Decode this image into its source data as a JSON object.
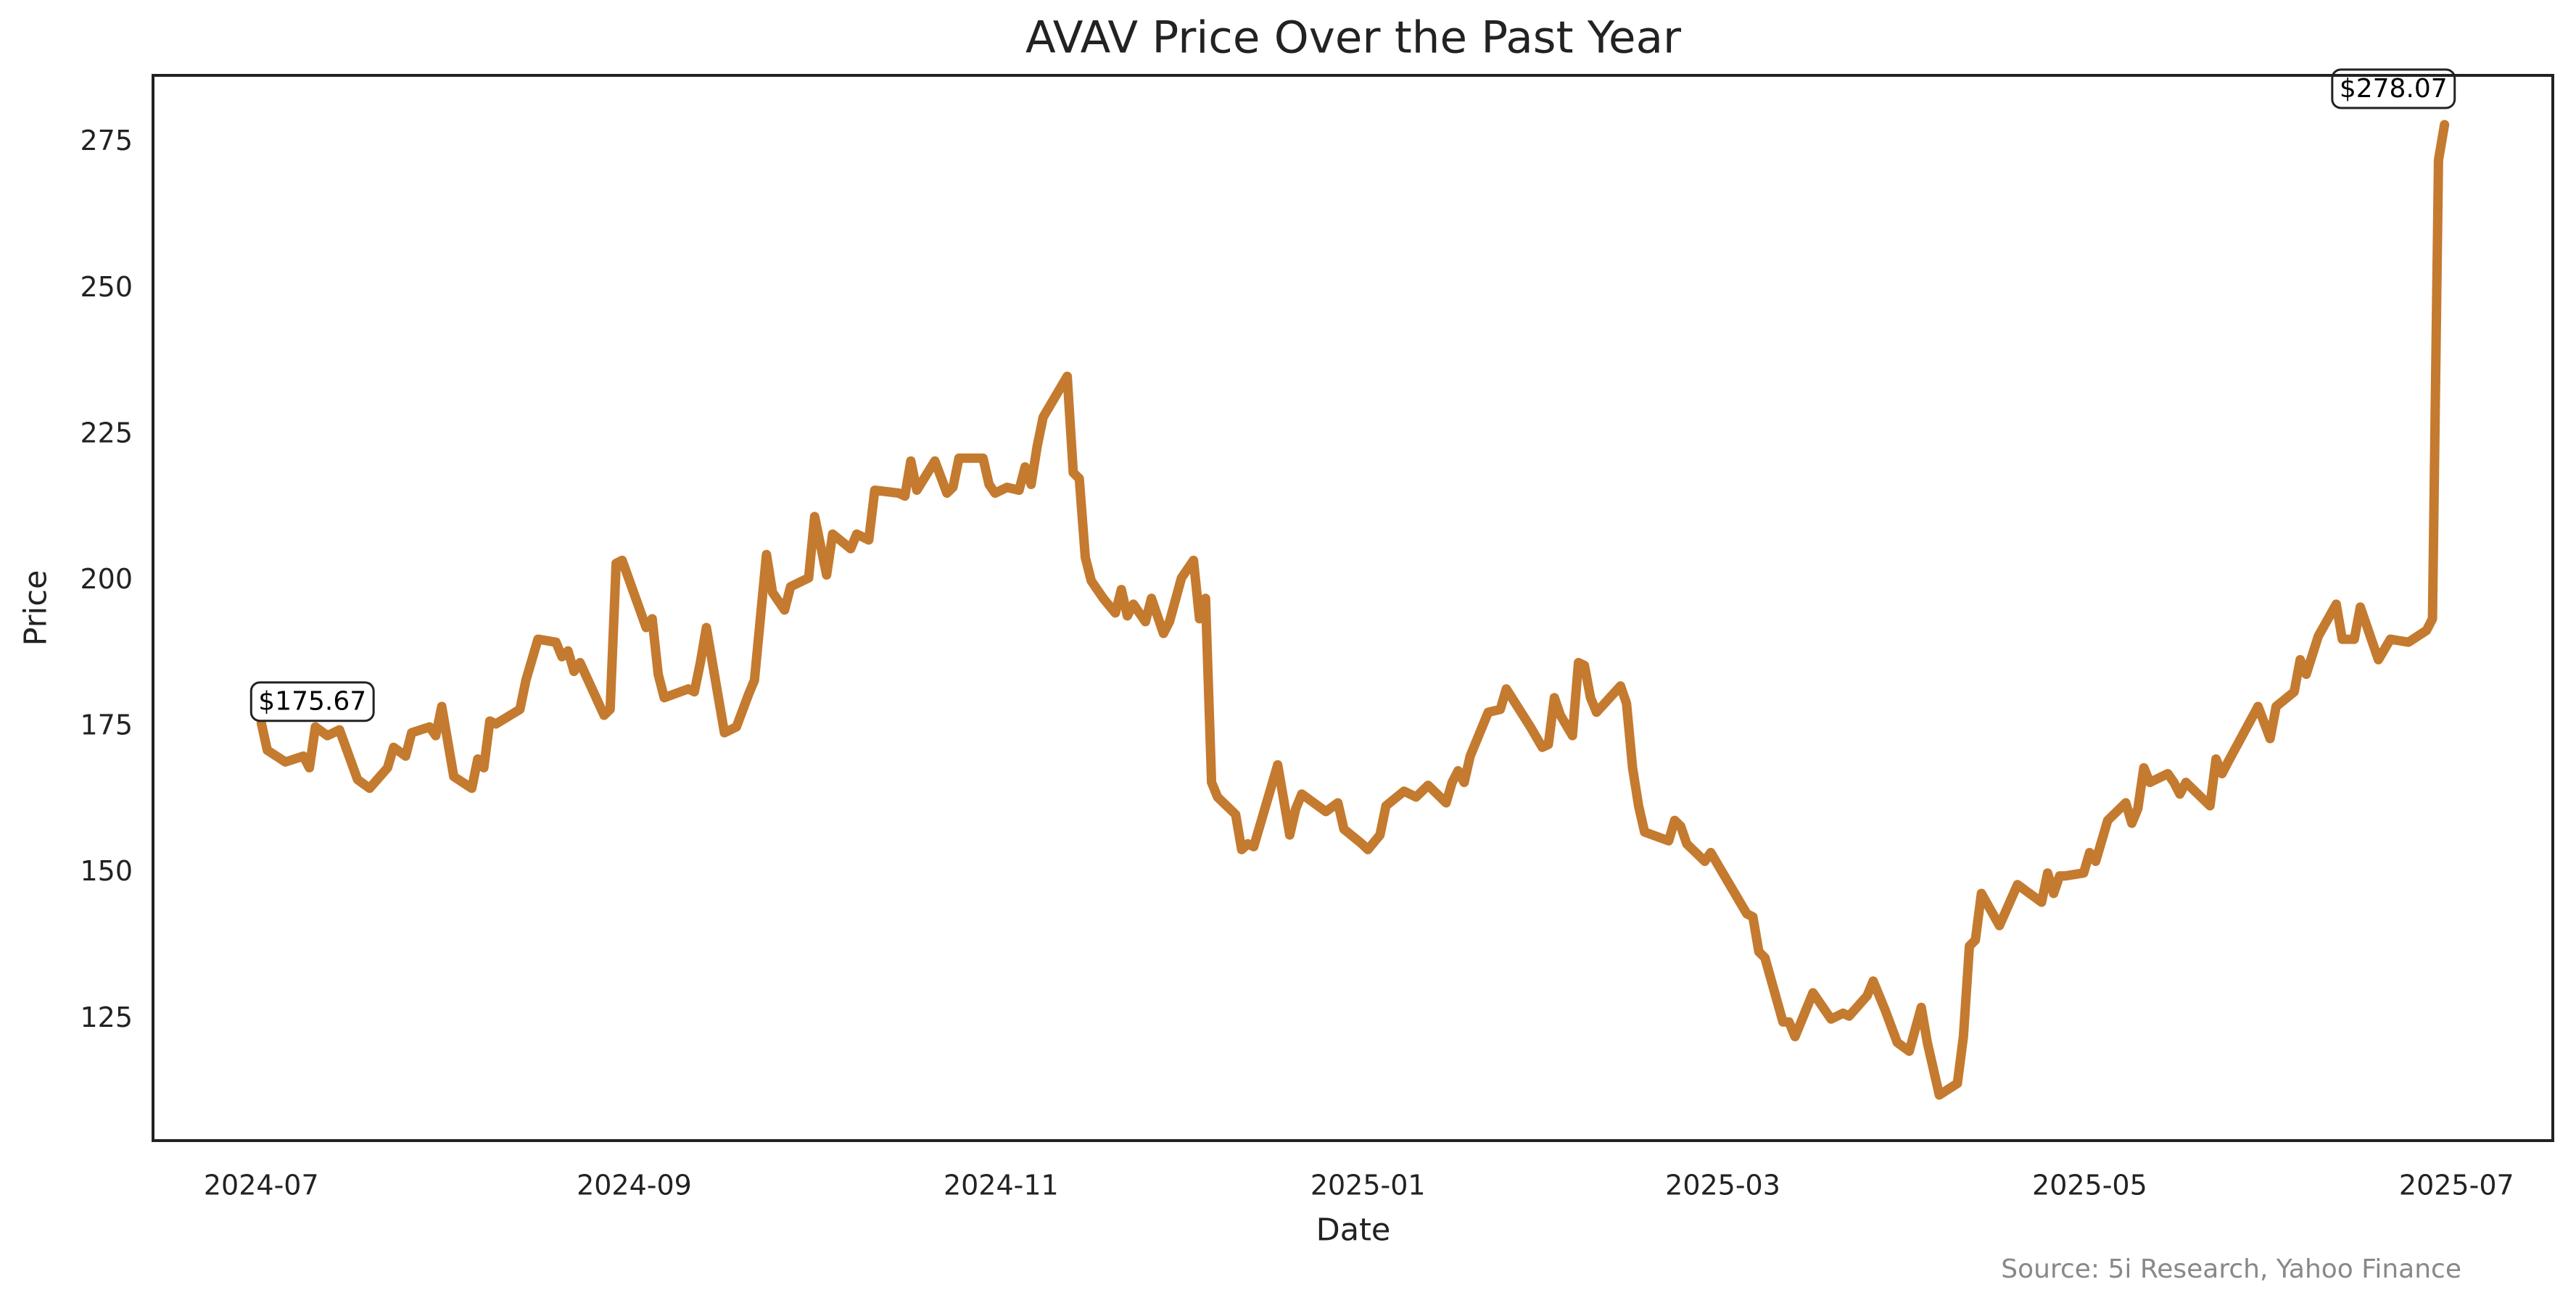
{
  "chart_data": {
    "type": "line",
    "title": "AVAV Price Over the Past Year",
    "x_label": "Date",
    "y_label": "Price",
    "source": "Source: 5i Research, Yahoo Finance",
    "xlim": [
      "2024-06-13",
      "2025-07-17"
    ],
    "ylim": [
      104.2,
      286.5
    ],
    "xticks": [
      {
        "value": "2024-07-01",
        "label": "2024-07"
      },
      {
        "value": "2024-09-01",
        "label": "2024-09"
      },
      {
        "value": "2024-11-01",
        "label": "2024-11"
      },
      {
        "value": "2025-01-01",
        "label": "2025-01"
      },
      {
        "value": "2025-03-01",
        "label": "2025-03"
      },
      {
        "value": "2025-05-01",
        "label": "2025-05"
      },
      {
        "value": "2025-07-01",
        "label": "2025-07"
      }
    ],
    "yticks": [
      125,
      150,
      175,
      200,
      225,
      250,
      275
    ],
    "grid": false,
    "x": [
      "2024-07-01",
      "2024-07-02",
      "2024-07-05",
      "2024-07-08",
      "2024-07-09",
      "2024-07-10",
      "2024-07-12",
      "2024-07-14",
      "2024-07-17",
      "2024-07-19",
      "2024-07-22",
      "2024-07-23",
      "2024-07-25",
      "2024-07-26",
      "2024-07-29",
      "2024-07-30",
      "2024-07-31",
      "2024-08-02",
      "2024-08-05",
      "2024-08-06",
      "2024-08-07",
      "2024-08-08",
      "2024-08-09",
      "2024-08-13",
      "2024-08-14",
      "2024-08-16",
      "2024-08-19",
      "2024-08-20",
      "2024-08-21",
      "2024-08-22",
      "2024-08-23",
      "2024-08-27",
      "2024-08-28",
      "2024-08-29",
      "2024-08-30",
      "2024-09-03",
      "2024-09-04",
      "2024-09-05",
      "2024-09-06",
      "2024-09-10",
      "2024-09-11",
      "2024-09-12",
      "2024-09-13",
      "2024-09-16",
      "2024-09-18",
      "2024-09-20",
      "2024-09-21",
      "2024-09-23",
      "2024-09-24",
      "2024-09-26",
      "2024-09-27",
      "2024-09-30",
      "2024-10-01",
      "2024-10-03",
      "2024-10-04",
      "2024-10-07",
      "2024-10-08",
      "2024-10-10",
      "2024-10-11",
      "2024-10-15",
      "2024-10-16",
      "2024-10-17",
      "2024-10-18",
      "2024-10-21",
      "2024-10-23",
      "2024-10-24",
      "2024-10-25",
      "2024-10-29",
      "2024-10-30",
      "2024-10-31",
      "2024-11-02",
      "2024-11-04",
      "2024-11-05",
      "2024-11-06",
      "2024-11-07",
      "2024-11-08",
      "2024-11-12",
      "2024-11-13",
      "2024-11-14",
      "2024-11-15",
      "2024-11-16",
      "2024-11-18",
      "2024-11-20",
      "2024-11-21",
      "2024-11-22",
      "2024-11-23",
      "2024-11-25",
      "2024-11-26",
      "2024-11-28",
      "2024-11-29",
      "2024-12-01",
      "2024-12-03",
      "2024-12-04",
      "2024-12-05",
      "2024-12-06",
      "2024-12-07",
      "2024-12-10",
      "2024-12-11",
      "2024-12-12",
      "2024-12-13",
      "2024-12-17",
      "2024-12-19",
      "2024-12-20",
      "2024-12-21",
      "2024-12-25",
      "2024-12-27",
      "2024-12-28",
      "2024-12-31",
      "2025-01-01",
      "2025-01-03",
      "2025-01-04",
      "2025-01-07",
      "2025-01-09",
      "2025-01-11",
      "2025-01-14",
      "2025-01-15",
      "2025-01-16",
      "2025-01-17",
      "2025-01-18",
      "2025-01-21",
      "2025-01-23",
      "2025-01-24",
      "2025-01-28",
      "2025-01-30",
      "2025-01-31",
      "2025-02-01",
      "2025-02-02",
      "2025-02-04",
      "2025-02-05",
      "2025-02-06",
      "2025-02-07",
      "2025-02-08",
      "2025-02-12",
      "2025-02-13",
      "2025-02-14",
      "2025-02-15",
      "2025-02-16",
      "2025-02-20",
      "2025-02-21",
      "2025-02-22",
      "2025-02-23",
      "2025-02-25",
      "2025-02-26",
      "2025-02-27",
      "2025-03-05",
      "2025-03-06",
      "2025-03-07",
      "2025-03-08",
      "2025-03-11",
      "2025-03-12",
      "2025-03-13",
      "2025-03-16",
      "2025-03-19",
      "2025-03-21",
      "2025-03-22",
      "2025-03-25",
      "2025-03-26",
      "2025-03-28",
      "2025-03-30",
      "2025-04-01",
      "2025-04-03",
      "2025-04-04",
      "2025-04-06",
      "2025-04-09",
      "2025-04-10",
      "2025-04-11",
      "2025-04-12",
      "2025-04-13",
      "2025-04-16",
      "2025-04-19",
      "2025-04-23",
      "2025-04-24",
      "2025-04-25",
      "2025-04-26",
      "2025-04-27",
      "2025-04-30",
      "2025-05-01",
      "2025-05-02",
      "2025-05-04",
      "2025-05-07",
      "2025-05-08",
      "2025-05-09",
      "2025-05-10",
      "2025-05-11",
      "2025-05-14",
      "2025-05-15",
      "2025-05-16",
      "2025-05-17",
      "2025-05-21",
      "2025-05-22",
      "2025-05-23",
      "2025-05-24",
      "2025-05-29",
      "2025-05-31",
      "2025-06-01",
      "2025-06-04",
      "2025-06-05",
      "2025-06-06",
      "2025-06-08",
      "2025-06-11",
      "2025-06-12",
      "2025-06-14",
      "2025-06-15",
      "2025-06-18",
      "2025-06-20",
      "2025-06-23",
      "2025-06-26",
      "2025-06-27",
      "2025-06-28",
      "2025-06-29"
    ],
    "series": [
      {
        "name": "AVAV",
        "color": "#c47a2f",
        "values": [
          175.67,
          171,
          169,
          170,
          168,
          175,
          173.5,
          174.5,
          166,
          164.5,
          168,
          171.5,
          170,
          174,
          175,
          173.5,
          178.5,
          166.5,
          164.5,
          169.5,
          168,
          176,
          175.5,
          178,
          183,
          190,
          189.5,
          187,
          188,
          184.5,
          186,
          177,
          178,
          203,
          203.5,
          192,
          193.5,
          184,
          180,
          181.5,
          181,
          186,
          192,
          174,
          175,
          180.5,
          183,
          204.5,
          198,
          195,
          199,
          200.5,
          211,
          201,
          208,
          205.5,
          208,
          207,
          215.5,
          215,
          214.5,
          220.5,
          215.5,
          220.5,
          215,
          216,
          221,
          221,
          216.5,
          215,
          216,
          215.5,
          219.5,
          216.5,
          223,
          228,
          235,
          218.5,
          217.5,
          204,
          200,
          197,
          194.5,
          198.5,
          194,
          196,
          193,
          197,
          191,
          193,
          200.5,
          203.5,
          193.5,
          197,
          165.5,
          163,
          160,
          154,
          155,
          154.5,
          168.5,
          156.5,
          161,
          163.5,
          160.5,
          162,
          157.5,
          155,
          154,
          156.5,
          161.5,
          164,
          163,
          165,
          162,
          165.5,
          167.5,
          165.5,
          170,
          177.5,
          178,
          181.5,
          175,
          171.5,
          172,
          180,
          177,
          173.5,
          186,
          185.5,
          180,
          177.5,
          182,
          179,
          168,
          161.5,
          157,
          155.5,
          159,
          158,
          155,
          153,
          152,
          153.5,
          143,
          142.5,
          136.5,
          135.5,
          124.5,
          124.5,
          122,
          129.5,
          125,
          126,
          125.5,
          129,
          131.5,
          126.5,
          121,
          119.5,
          127,
          121,
          112,
          114,
          122,
          137.5,
          138.5,
          146.5,
          141,
          148,
          145,
          150,
          146.5,
          149.5,
          149.5,
          150,
          153.5,
          152,
          159,
          162,
          158.5,
          161,
          168,
          165.5,
          167,
          165.5,
          163.5,
          165.5,
          161.5,
          169.5,
          167,
          169,
          178.5,
          173,
          178.5,
          181,
          186.5,
          184,
          190.5,
          196,
          190,
          190,
          195.5,
          186.5,
          190,
          189.5,
          191.5,
          193.5,
          272,
          278.07
        ]
      }
    ],
    "annotations": [
      {
        "x": "2024-07-01",
        "y": 175.67,
        "label": "$175.67"
      },
      {
        "x": "2025-06-29",
        "y": 278.07,
        "label": "$278.07"
      }
    ]
  }
}
